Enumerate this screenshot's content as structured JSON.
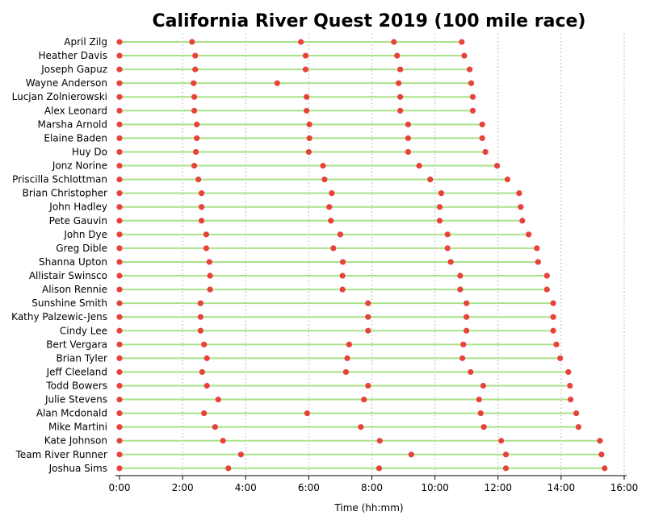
{
  "chart_data": {
    "type": "dot-line",
    "title": "California River Quest 2019 (100 mile race)",
    "xlabel": "Time (hh:mm)",
    "ylabel": "",
    "xlim": [
      0,
      16
    ],
    "x_ticks": [
      {
        "value": 0,
        "label": "0:00"
      },
      {
        "value": 2,
        "label": "2:00"
      },
      {
        "value": 4,
        "label": "4:00"
      },
      {
        "value": 6,
        "label": "6:00"
      },
      {
        "value": 8,
        "label": "8:00"
      },
      {
        "value": 10,
        "label": "10:00"
      },
      {
        "value": 12,
        "label": "12:00"
      },
      {
        "value": 14,
        "label": "14:00"
      },
      {
        "value": 16,
        "label": "16:00"
      }
    ],
    "grid": "vertical-dotted",
    "colors": {
      "line": "#a8e28a",
      "point": "#e8423a",
      "grid": "#aaaaaa"
    },
    "runners": [
      {
        "name": "April Zilg",
        "times": [
          0,
          2.3,
          5.75,
          8.7,
          10.85
        ]
      },
      {
        "name": "Heather Davis",
        "times": [
          0,
          2.4,
          5.9,
          8.8,
          10.93
        ]
      },
      {
        "name": "Joseph Gapuz",
        "times": [
          0,
          2.4,
          5.9,
          8.9,
          11.1
        ]
      },
      {
        "name": "Wayne Anderson",
        "times": [
          0,
          2.35,
          5.0,
          8.85,
          11.15
        ]
      },
      {
        "name": "Lucjan Zolnierowski",
        "times": [
          0,
          2.37,
          5.93,
          8.9,
          11.2
        ]
      },
      {
        "name": "Alex Leonard",
        "times": [
          0,
          2.37,
          5.93,
          8.9,
          11.2
        ]
      },
      {
        "name": "Marsha Arnold",
        "times": [
          0,
          2.45,
          6.02,
          9.15,
          11.5
        ]
      },
      {
        "name": "Elaine Baden",
        "times": [
          0,
          2.45,
          6.02,
          9.15,
          11.5
        ]
      },
      {
        "name": "Huy Do",
        "times": [
          0,
          2.42,
          6.0,
          9.15,
          11.6
        ]
      },
      {
        "name": "Jonz Norine",
        "times": [
          0,
          2.37,
          6.45,
          9.5,
          11.97
        ]
      },
      {
        "name": "Priscilla Schlottman",
        "times": [
          0,
          2.5,
          6.5,
          9.85,
          12.3
        ]
      },
      {
        "name": "Brian Christopher",
        "times": [
          0,
          2.6,
          6.73,
          10.2,
          12.67
        ]
      },
      {
        "name": "John Hadley",
        "times": [
          0,
          2.6,
          6.65,
          10.15,
          12.72
        ]
      },
      {
        "name": "Pete Gauvin",
        "times": [
          0,
          2.6,
          6.7,
          10.15,
          12.77
        ]
      },
      {
        "name": "John Dye",
        "times": [
          0,
          2.75,
          7.0,
          10.4,
          12.97
        ]
      },
      {
        "name": "Greg Dible",
        "times": [
          0,
          2.75,
          6.78,
          10.4,
          13.23
        ]
      },
      {
        "name": "Shanna Upton",
        "times": [
          0,
          2.85,
          7.08,
          10.5,
          13.27
        ]
      },
      {
        "name": "Allistair Swinsco",
        "times": [
          0,
          2.87,
          7.07,
          10.8,
          13.55
        ]
      },
      {
        "name": "Alison Rennie",
        "times": [
          0,
          2.87,
          7.07,
          10.8,
          13.55
        ]
      },
      {
        "name": "Sunshine Smith",
        "times": [
          0,
          2.57,
          7.88,
          11.0,
          13.75
        ]
      },
      {
        "name": "Kathy Palzewic-Jens",
        "times": [
          0,
          2.57,
          7.88,
          11.0,
          13.75
        ]
      },
      {
        "name": "Cindy Lee",
        "times": [
          0,
          2.57,
          7.88,
          11.0,
          13.75
        ]
      },
      {
        "name": "Bert Vergara",
        "times": [
          0,
          2.68,
          7.28,
          10.9,
          13.85
        ]
      },
      {
        "name": "Brian Tyler",
        "times": [
          0,
          2.77,
          7.22,
          10.87,
          13.97
        ]
      },
      {
        "name": "Jeff Cleeland",
        "times": [
          0,
          2.62,
          7.18,
          11.13,
          14.23
        ]
      },
      {
        "name": "Todd Bowers",
        "times": [
          0,
          2.77,
          7.88,
          11.53,
          14.28
        ]
      },
      {
        "name": "Julie Stevens",
        "times": [
          0,
          3.13,
          7.75,
          11.4,
          14.3
        ]
      },
      {
        "name": "Alan Mcdonald",
        "times": [
          0,
          2.68,
          5.95,
          11.45,
          14.48
        ]
      },
      {
        "name": "Mike Martini",
        "times": [
          0,
          3.03,
          7.65,
          11.55,
          14.55
        ]
      },
      {
        "name": "Kate Johnson",
        "times": [
          0,
          3.28,
          8.25,
          12.1,
          15.23
        ]
      },
      {
        "name": "Team River Runner",
        "times": [
          0,
          3.85,
          9.25,
          12.25,
          15.28
        ]
      },
      {
        "name": "Joshua Sims",
        "times": [
          0,
          3.45,
          8.23,
          12.25,
          15.38
        ]
      }
    ]
  }
}
